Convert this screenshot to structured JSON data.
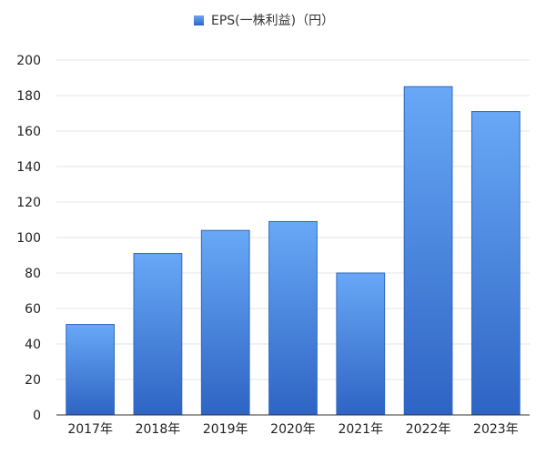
{
  "chart_data": {
    "type": "bar",
    "categories": [
      "2017年",
      "2018年",
      "2019年",
      "2020年",
      "2021年",
      "2022年",
      "2023年"
    ],
    "series": [
      {
        "name": "EPS(一株利益)（円）",
        "values": [
          51,
          91,
          104,
          109,
          80,
          185,
          171
        ]
      }
    ],
    "ylim": [
      0,
      200
    ],
    "yticks": [
      0,
      20,
      40,
      60,
      80,
      100,
      120,
      140,
      160,
      180,
      200
    ],
    "grid": true,
    "legend": "top-center",
    "colors": {
      "bar_top": "#68a8f6",
      "bar_bottom": "#2e64c4",
      "bar_stroke": "#2f66c2",
      "grid": "#e4e4e4",
      "axis": "#333333"
    }
  }
}
